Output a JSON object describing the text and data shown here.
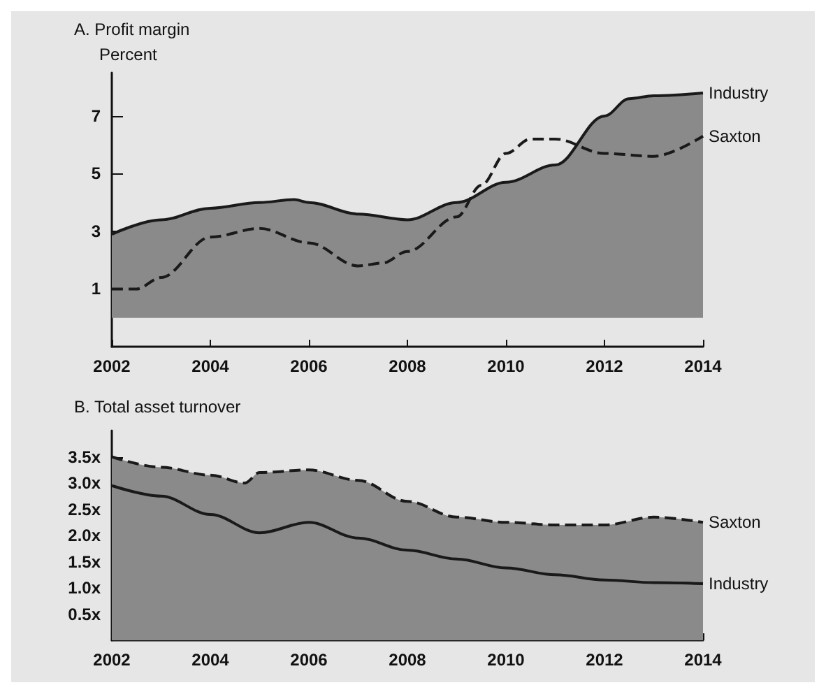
{
  "chart_data": [
    {
      "type": "area",
      "title": "A. Profit margin",
      "ylabel": "Percent",
      "xlim": [
        2002,
        2014
      ],
      "xticks": [
        2002,
        2004,
        2006,
        2008,
        2010,
        2012,
        2014
      ],
      "ylim": [
        -1,
        8.5
      ],
      "yticks": [
        1,
        3,
        5,
        7
      ],
      "grid": false,
      "legend": false,
      "marker": "none",
      "series": [
        {
          "name": "Industry",
          "color": "#1a1a1a",
          "line_style": "solid",
          "x": [
            2002,
            2003,
            2004,
            2005,
            2005.7,
            2006,
            2007,
            2008,
            2009,
            2010,
            2011,
            2012,
            2012.5,
            2013,
            2014
          ],
          "values": [
            2.9,
            3.4,
            3.8,
            4.0,
            4.1,
            4.0,
            3.6,
            3.4,
            4.0,
            4.7,
            5.3,
            7.0,
            7.6,
            7.7,
            7.8
          ]
        },
        {
          "name": "Saxton",
          "type": "line",
          "color": "#1a1a1a",
          "line_style": "dashed",
          "x": [
            2002,
            2002.5,
            2003,
            2004,
            2005,
            2006,
            2007,
            2007.5,
            2008,
            2009,
            2009.5,
            2010,
            2010.5,
            2011,
            2012,
            2013,
            2014
          ],
          "values": [
            1.0,
            1.0,
            1.4,
            2.8,
            3.1,
            2.6,
            1.8,
            1.9,
            2.3,
            3.5,
            4.6,
            5.7,
            6.2,
            6.2,
            5.7,
            5.6,
            6.3
          ]
        }
      ]
    },
    {
      "type": "area",
      "title": "B. Total asset turnover",
      "xlim": [
        2002,
        2014
      ],
      "xticks": [
        2002,
        2004,
        2006,
        2008,
        2010,
        2012,
        2014
      ],
      "ylim": [
        0,
        4
      ],
      "yticks": [
        {
          "value": 0.5,
          "label": "0.5x"
        },
        {
          "value": 1,
          "label": "1.0x"
        },
        {
          "value": 1.5,
          "label": "1.5x"
        },
        {
          "value": 2,
          "label": "2.0x"
        },
        {
          "value": 2.5,
          "label": "2.5x"
        },
        {
          "value": 3,
          "label": "3.0x"
        },
        {
          "value": 3.5,
          "label": "3.5x"
        }
      ],
      "grid": false,
      "legend": false,
      "marker": "none",
      "series": [
        {
          "name": "Saxton",
          "color": "#1a1a1a",
          "line_style": "dashed",
          "x": [
            2002,
            2003,
            2004,
            2004.7,
            2005,
            2006,
            2007,
            2008,
            2009,
            2010,
            2011,
            2012,
            2013,
            2014
          ],
          "values": [
            3.5,
            3.3,
            3.15,
            3.0,
            3.2,
            3.25,
            3.05,
            2.65,
            2.35,
            2.25,
            2.2,
            2.2,
            2.35,
            2.25
          ]
        },
        {
          "name": "Industry",
          "type": "line",
          "color": "#1a1a1a",
          "line_style": "solid",
          "x": [
            2002,
            2003,
            2004,
            2005,
            2006,
            2007,
            2008,
            2009,
            2010,
            2011,
            2012,
            2013,
            2014
          ],
          "values": [
            2.95,
            2.75,
            2.4,
            2.05,
            2.25,
            1.95,
            1.72,
            1.55,
            1.38,
            1.25,
            1.15,
            1.1,
            1.08
          ]
        }
      ]
    }
  ]
}
